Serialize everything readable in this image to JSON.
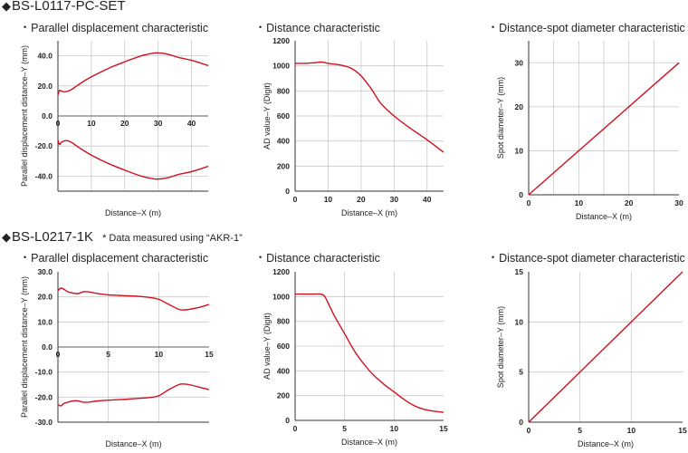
{
  "sections": [
    {
      "title": "BS-L0117-PC-SET",
      "note": "",
      "charts": [
        {
          "title": "Parallel displacement characteristic"
        },
        {
          "title": "Distance characteristic"
        },
        {
          "title": "Distance-spot diameter characteristic"
        }
      ]
    },
    {
      "title": "BS-L0217-1K",
      "note": "* Data measured using “AKR-1”",
      "charts": [
        {
          "title": "Parallel displacement characteristic"
        },
        {
          "title": "Distance characteristic"
        },
        {
          "title": "Distance-spot diameter characteristic"
        }
      ]
    }
  ],
  "colors": {
    "line": "#d0101e",
    "grid": "#c8c8c8",
    "frame": "#333333"
  },
  "chart_data": [
    {
      "type": "line",
      "title": "Parallel displacement characteristic",
      "xlabel": "Distance–X (m)",
      "ylabel": "Parallel displacement distance–Y (mm)",
      "xlim": [
        0,
        45
      ],
      "ylim": [
        -50,
        50
      ],
      "xticks": [
        0,
        10,
        20,
        30,
        40
      ],
      "yticks": [
        40.0,
        20.0,
        0.0,
        -20.0,
        -40.0
      ],
      "ytick_labels": [
        "40.0",
        "20.0",
        "0.0",
        "-20.0",
        "-40.0"
      ],
      "x_tick_on_zero_line": true,
      "grid": true,
      "series": [
        {
          "x": [
            0,
            0.5,
            1,
            2,
            3,
            4,
            5,
            7,
            10,
            15,
            20,
            25,
            28,
            30,
            33,
            36,
            40,
            45
          ],
          "y": [
            14,
            17,
            16.5,
            16,
            16.5,
            17.5,
            19,
            22,
            26,
            31.5,
            36,
            40,
            41.5,
            42,
            41,
            39,
            37,
            33.5
          ]
        },
        {
          "x": [
            0,
            0.5,
            1,
            2,
            3,
            4,
            5,
            7,
            10,
            15,
            20,
            25,
            28,
            30,
            33,
            36,
            40,
            45
          ],
          "y": [
            -16,
            -19,
            -17.5,
            -16.5,
            -16.5,
            -17.5,
            -19,
            -22,
            -26,
            -31.5,
            -36,
            -40,
            -41.5,
            -42,
            -41,
            -39,
            -37,
            -33.5
          ]
        }
      ]
    },
    {
      "type": "line",
      "title": "Distance characteristic",
      "xlabel": "Distance–X (m)",
      "ylabel": "AD value–Y (Digit)",
      "xlim": [
        0,
        45
      ],
      "ylim": [
        0,
        1200
      ],
      "xticks": [
        0,
        10,
        20,
        30,
        40
      ],
      "yticks": [
        0,
        200,
        400,
        600,
        800,
        1000,
        1200
      ],
      "ytick_labels": [
        "0",
        "200",
        "400",
        "600",
        "800",
        "1000",
        "1200"
      ],
      "grid": true,
      "series": [
        {
          "x": [
            0,
            3,
            6,
            8,
            10,
            14,
            17,
            20,
            23,
            26,
            30,
            35,
            40,
            45
          ],
          "y": [
            1020,
            1020,
            1025,
            1030,
            1020,
            1005,
            980,
            920,
            820,
            700,
            600,
            500,
            410,
            310
          ]
        }
      ]
    },
    {
      "type": "line",
      "title": "Distance-spot diameter characteristic",
      "xlabel": "Distance–X (m)",
      "ylabel": "Spot diameter–Y (mm)",
      "xlim": [
        0,
        30
      ],
      "ylim": [
        0,
        35
      ],
      "xticks": [
        0,
        10,
        20,
        30
      ],
      "yticks": [
        0,
        10,
        20,
        30
      ],
      "ytick_labels": [
        "0",
        "10",
        "20",
        "30"
      ],
      "grid": true,
      "minor_x_grid": [
        5,
        15,
        25
      ],
      "series": [
        {
          "x": [
            0,
            30
          ],
          "y": [
            0,
            30
          ]
        }
      ]
    },
    {
      "type": "line",
      "title": "Parallel displacement characteristic",
      "xlabel": "Distance–X (m)",
      "ylabel": "Parallel displacement distance–Y (mm)",
      "xlim": [
        0,
        15
      ],
      "ylim": [
        -30,
        30
      ],
      "xticks": [
        0,
        5,
        10,
        15
      ],
      "yticks": [
        30.0,
        20.0,
        10.0,
        0.0,
        -10.0,
        -20.0,
        -30.0
      ],
      "ytick_labels": [
        "30.0",
        "20.0",
        "10.0",
        "0.0",
        "-10.0",
        "-20.0",
        "-30.0"
      ],
      "x_tick_on_zero_line": true,
      "grid": true,
      "series": [
        {
          "x": [
            0,
            0.3,
            0.6,
            1,
            1.5,
            2,
            2.5,
            3,
            4,
            5,
            6,
            7,
            8,
            9,
            10,
            11,
            12,
            12.5,
            13,
            14,
            15
          ],
          "y": [
            22.5,
            23.5,
            23,
            22,
            21.5,
            21.3,
            22,
            22,
            21.3,
            20.8,
            20.6,
            20.4,
            20.2,
            19.8,
            19,
            17,
            15,
            14.8,
            15,
            15.8,
            17
          ]
        },
        {
          "x": [
            0,
            0.3,
            0.6,
            1,
            1.5,
            2,
            2.5,
            3,
            4,
            5,
            6,
            7,
            8,
            9,
            10,
            11,
            12,
            12.5,
            13,
            14,
            15
          ],
          "y": [
            -23,
            -23.5,
            -22.5,
            -22,
            -21.5,
            -21.5,
            -22,
            -22,
            -21.5,
            -21.2,
            -21,
            -20.8,
            -20.5,
            -20.2,
            -19.5,
            -17,
            -15,
            -14.8,
            -15,
            -16,
            -17
          ]
        }
      ]
    },
    {
      "type": "line",
      "title": "Distance characteristic",
      "xlabel": "Distance–X (m)",
      "ylabel": "AD value–Y (Digit)",
      "xlim": [
        0,
        15
      ],
      "ylim": [
        0,
        1200
      ],
      "xticks": [
        0,
        5,
        10,
        15
      ],
      "yticks": [
        0,
        200,
        400,
        600,
        800,
        1000,
        1200
      ],
      "ytick_labels": [
        "0",
        "200",
        "400",
        "600",
        "800",
        "1000",
        "1200"
      ],
      "grid": true,
      "series": [
        {
          "x": [
            0,
            1,
            2,
            2.6,
            3,
            3.5,
            4,
            5,
            6,
            7,
            8,
            9,
            10,
            11,
            12,
            13,
            14,
            15
          ],
          "y": [
            1020,
            1020,
            1020,
            1020,
            1000,
            920,
            840,
            700,
            560,
            450,
            360,
            290,
            230,
            170,
            120,
            90,
            75,
            65
          ]
        }
      ]
    },
    {
      "type": "line",
      "title": "Distance-spot diameter characteristic",
      "xlabel": "Distance–X (m)",
      "ylabel": "Spot diameter–Y (mm)",
      "xlim": [
        0,
        15
      ],
      "ylim": [
        0,
        15
      ],
      "xticks": [
        0,
        5,
        10,
        15
      ],
      "yticks": [
        0,
        5,
        10,
        15
      ],
      "ytick_labels": [
        "0",
        "5",
        "10",
        "15"
      ],
      "grid": true,
      "series": [
        {
          "x": [
            0,
            15
          ],
          "y": [
            0,
            15
          ]
        }
      ]
    }
  ]
}
